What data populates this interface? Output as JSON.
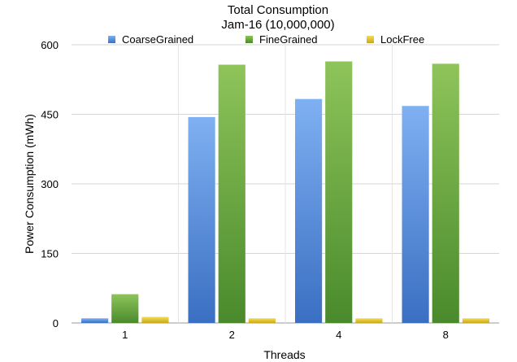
{
  "chart_data": {
    "type": "bar",
    "title": "Total Consumption",
    "subtitle": "Jam-16 (10,000,000)",
    "xlabel": "Threads",
    "ylabel": "Power Consumption (mWh)",
    "categories": [
      "1",
      "2",
      "4",
      "8"
    ],
    "ylim": [
      0,
      600
    ],
    "yticks": [
      0,
      150,
      300,
      450,
      600
    ],
    "grid": true,
    "legend_position": "top",
    "series": [
      {
        "name": "CoarseGrained",
        "color": "#4a86d6",
        "values": [
          10,
          444,
          483,
          468
        ]
      },
      {
        "name": "FineGrained",
        "color": "#5da33a",
        "values": [
          62,
          557,
          564,
          559
        ]
      },
      {
        "name": "LockFree",
        "color": "#e3c62a",
        "values": [
          13,
          10,
          10,
          10
        ]
      }
    ]
  }
}
